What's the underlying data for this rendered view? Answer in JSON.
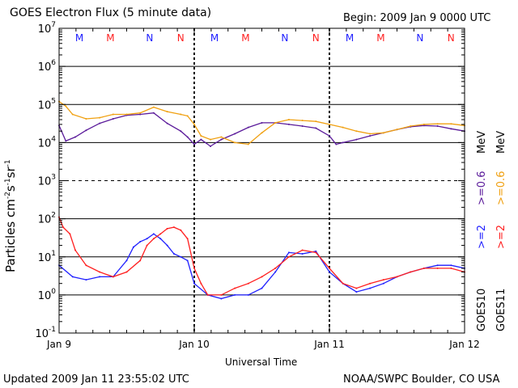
{
  "title": "GOES Electron Flux (5 minute data)",
  "begin": "Begin: 2009 Jan 9 0000 UTC",
  "updated": "Updated 2009 Jan 11 23:55:02 UTC",
  "credit": "NOAA/SWPC Boulder, CO USA",
  "colors": {
    "goes10": "#1f1fff",
    "goes11": "#ff1f1f",
    "purple": "#5a1a9a",
    "orange": "#f0a010"
  },
  "chart_data": {
    "type": "line",
    "title": "GOES Electron Flux (5 minute data)",
    "xlabel": "Universal Time",
    "ylabel": "Particles cm⁻²s⁻¹sr⁻¹",
    "ylabel_main": "Particles cm",
    "ylabel_sup1": "-2",
    "ylabel_mid": "s",
    "ylabel_sup2": "-1",
    "ylabel_mid2": "sr",
    "ylabel_sup3": "-1",
    "y_scale": "log",
    "ylim": [
      0.1,
      10000000
    ],
    "y_ticks": [
      {
        "base": "10",
        "exp": "7"
      },
      {
        "base": "10",
        "exp": "6"
      },
      {
        "base": "10",
        "exp": "5"
      },
      {
        "base": "10",
        "exp": "4"
      },
      {
        "base": "10",
        "exp": "3"
      },
      {
        "base": "10",
        "exp": "2"
      },
      {
        "base": "10",
        "exp": "1"
      },
      {
        "base": "10",
        "exp": "0"
      },
      {
        "base": "10",
        "exp": "-1"
      }
    ],
    "xlim": [
      "2009-01-09",
      "2009-01-12"
    ],
    "x_ticks": [
      "Jan 9",
      "Jan 10",
      "Jan 11",
      "Jan 12"
    ],
    "mn_markers": [
      {
        "label": "M",
        "color": "#1f1fff",
        "day": 0.15
      },
      {
        "label": "M",
        "color": "#ff1f1f",
        "day": 0.38
      },
      {
        "label": "N",
        "color": "#1f1fff",
        "day": 0.67
      },
      {
        "label": "N",
        "color": "#ff1f1f",
        "day": 0.9
      },
      {
        "label": "M",
        "color": "#1f1fff",
        "day": 1.15
      },
      {
        "label": "M",
        "color": "#ff1f1f",
        "day": 1.38
      },
      {
        "label": "N",
        "color": "#1f1fff",
        "day": 1.67
      },
      {
        "label": "N",
        "color": "#ff1f1f",
        "day": 1.9
      },
      {
        "label": "M",
        "color": "#1f1fff",
        "day": 2.15
      },
      {
        "label": "M",
        "color": "#ff1f1f",
        "day": 2.38
      },
      {
        "label": "N",
        "color": "#1f1fff",
        "day": 2.67
      },
      {
        "label": "N",
        "color": "#ff1f1f",
        "day": 2.9
      }
    ],
    "legend": {
      "goes10": "GOES10",
      "goes11": "GOES11",
      "ge2": ">=2",
      "ge06": ">=0.6",
      "mev": "MeV"
    },
    "series": [
      {
        "name": ">=0.6 MeV GOES10",
        "color": "#5a1a9a",
        "x": [
          0.0,
          0.05,
          0.12,
          0.2,
          0.3,
          0.4,
          0.5,
          0.6,
          0.7,
          0.8,
          0.9,
          0.95,
          1.0,
          1.05,
          1.12,
          1.2,
          1.3,
          1.4,
          1.5,
          1.6,
          1.7,
          1.8,
          1.9,
          2.0,
          2.05,
          2.1,
          2.2,
          2.3,
          2.4,
          2.5,
          2.6,
          2.7,
          2.8,
          2.9,
          3.0
        ],
        "y": [
          28000,
          11000,
          14000,
          21000,
          32000,
          42000,
          52000,
          55000,
          60000,
          32000,
          20000,
          14000,
          9000,
          12000,
          8000,
          12000,
          17000,
          25000,
          33000,
          33000,
          30000,
          27000,
          24000,
          15000,
          9000,
          10000,
          12000,
          15000,
          18000,
          22000,
          26000,
          28000,
          27000,
          23000,
          20000
        ]
      },
      {
        "name": ">=0.6 MeV GOES11",
        "color": "#f0a010",
        "x": [
          0.0,
          0.05,
          0.1,
          0.2,
          0.3,
          0.4,
          0.5,
          0.6,
          0.7,
          0.8,
          0.9,
          0.95,
          1.0,
          1.05,
          1.12,
          1.2,
          1.3,
          1.4,
          1.5,
          1.6,
          1.7,
          1.8,
          1.9,
          2.0,
          2.1,
          2.2,
          2.3,
          2.4,
          2.5,
          2.6,
          2.7,
          2.8,
          2.9,
          3.0
        ],
        "y": [
          120000,
          90000,
          55000,
          42000,
          45000,
          55000,
          55000,
          60000,
          85000,
          65000,
          55000,
          50000,
          30000,
          15000,
          12000,
          14000,
          10000,
          9000,
          18000,
          33000,
          40000,
          38000,
          36000,
          30000,
          25000,
          20000,
          17000,
          18000,
          22000,
          27000,
          30000,
          31000,
          31000,
          28000
        ]
      },
      {
        "name": ">=2 MeV GOES10",
        "color": "#1f1fff",
        "x": [
          0.0,
          0.1,
          0.2,
          0.3,
          0.4,
          0.5,
          0.55,
          0.6,
          0.65,
          0.7,
          0.75,
          0.8,
          0.85,
          0.9,
          0.95,
          1.0,
          1.1,
          1.2,
          1.3,
          1.4,
          1.5,
          1.6,
          1.7,
          1.8,
          1.9,
          2.0,
          2.1,
          2.2,
          2.3,
          2.4,
          2.5,
          2.6,
          2.7,
          2.8,
          2.9,
          3.0
        ],
        "y": [
          6,
          3,
          2.5,
          3,
          3,
          8,
          18,
          25,
          30,
          40,
          30,
          20,
          12,
          10,
          8,
          2,
          1,
          0.8,
          1,
          1,
          1.5,
          4,
          13,
          12,
          14,
          4,
          2,
          1.2,
          1.5,
          2,
          3,
          4,
          5,
          6,
          6,
          5
        ]
      },
      {
        "name": ">=2 MeV GOES11",
        "color": "#ff1f1f",
        "x": [
          0.0,
          0.03,
          0.08,
          0.12,
          0.2,
          0.3,
          0.4,
          0.5,
          0.6,
          0.65,
          0.7,
          0.75,
          0.8,
          0.85,
          0.9,
          0.95,
          1.0,
          1.05,
          1.1,
          1.2,
          1.3,
          1.4,
          1.5,
          1.6,
          1.7,
          1.8,
          1.9,
          2.0,
          2.1,
          2.2,
          2.3,
          2.4,
          2.5,
          2.6,
          2.7,
          2.8,
          2.9,
          3.0
        ],
        "y": [
          110,
          60,
          40,
          15,
          6,
          4,
          3,
          4,
          8,
          20,
          30,
          40,
          55,
          60,
          50,
          30,
          5,
          2,
          1,
          1,
          1.5,
          2,
          3,
          5,
          10,
          15,
          13,
          5,
          2,
          1.5,
          2,
          2.5,
          3,
          4,
          5,
          5,
          5,
          4
        ]
      }
    ]
  }
}
